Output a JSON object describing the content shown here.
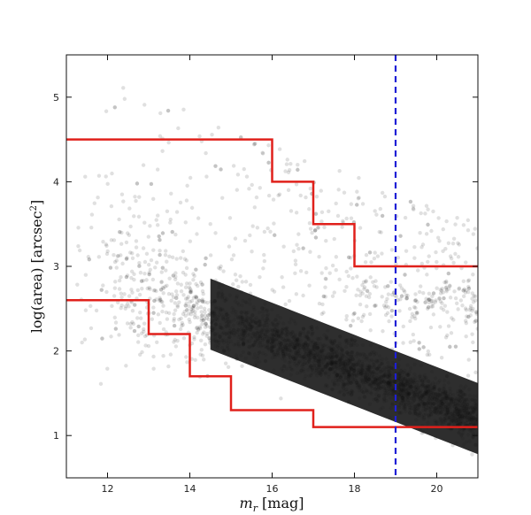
{
  "chart_data": {
    "type": "scatter",
    "xlabel": "m_r [mag]",
    "ylabel": "log(area) [arcsec²]",
    "xlim": [
      11,
      21
    ],
    "ylim": [
      0.5,
      5.5
    ],
    "x_ticks": [
      12,
      14,
      16,
      18,
      20
    ],
    "y_ticks": [
      1,
      2,
      3,
      4,
      5
    ],
    "grid": false,
    "series": [
      {
        "kind": "scatter-density",
        "color": "#000000",
        "marker_alpha": 0.12,
        "description_points": [
          [
            12.0,
            3.9
          ],
          [
            12.5,
            4.0
          ],
          [
            13.0,
            3.6
          ],
          [
            13.5,
            3.4
          ],
          [
            14.0,
            3.2
          ],
          [
            14.5,
            3.0
          ],
          [
            15.0,
            2.8
          ],
          [
            15.5,
            2.6
          ],
          [
            16.0,
            2.5
          ],
          [
            16.5,
            2.4
          ],
          [
            17.0,
            2.3
          ],
          [
            17.5,
            2.2
          ],
          [
            18.0,
            2.1
          ],
          [
            18.5,
            2.0
          ],
          [
            19.0,
            1.9
          ],
          [
            19.5,
            1.8
          ],
          [
            20.0,
            1.7
          ],
          [
            20.5,
            1.6
          ],
          [
            21.0,
            1.5
          ]
        ]
      }
    ],
    "upper_boundary": {
      "color": "#e0201b",
      "steps": [
        {
          "x0": 11,
          "x1": 16,
          "y": 4.5
        },
        {
          "x0": 16,
          "x1": 17,
          "y": 4.0
        },
        {
          "x0": 17,
          "x1": 18,
          "y": 3.5
        },
        {
          "x0": 18,
          "x1": 21,
          "y": 3.0
        }
      ]
    },
    "lower_boundary": {
      "color": "#e0201b",
      "steps": [
        {
          "x0": 11,
          "x1": 13,
          "y": 2.6
        },
        {
          "x0": 13,
          "x1": 14,
          "y": 2.2
        },
        {
          "x0": 14,
          "x1": 15,
          "y": 1.7
        },
        {
          "x0": 15,
          "x1": 17,
          "y": 1.3
        },
        {
          "x0": 17,
          "x1": 21,
          "y": 1.1
        }
      ]
    },
    "vertical_line": {
      "x": 19,
      "color": "#1f1fd6",
      "style": "dashed"
    }
  }
}
